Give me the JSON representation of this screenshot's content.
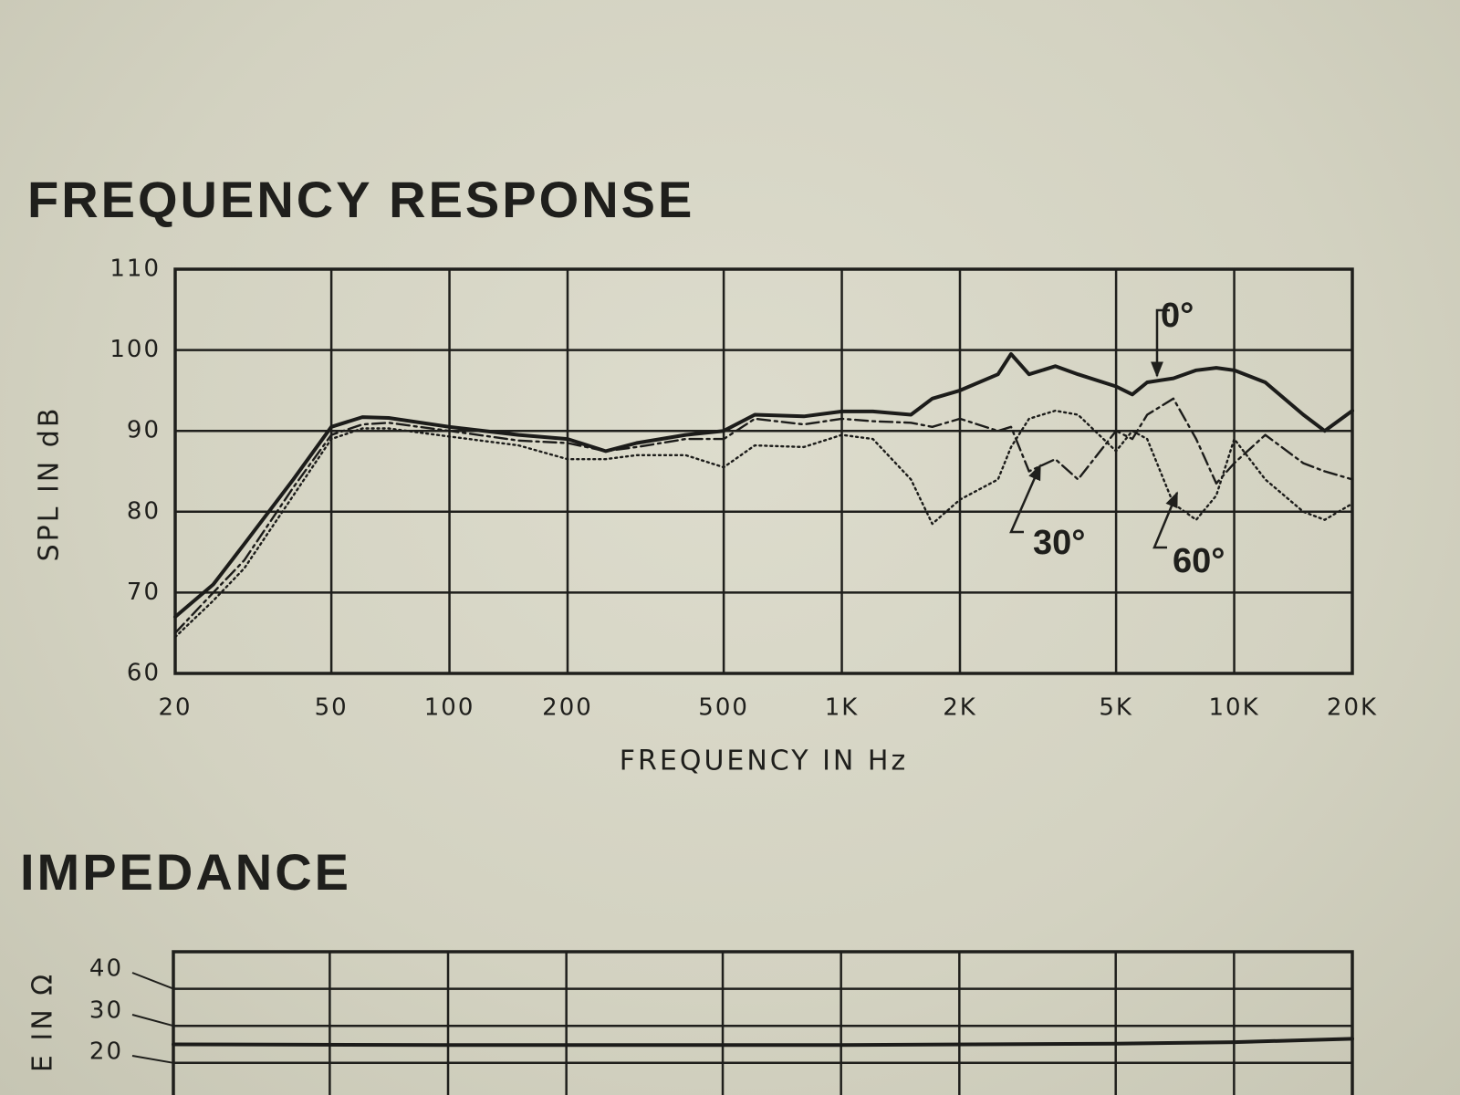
{
  "chart_data": [
    {
      "type": "line",
      "title": "FREQUENCY RESPONSE",
      "xlabel": "FREQUENCY IN Hz",
      "ylabel": "SPL IN dB",
      "log_x": true,
      "grid": true,
      "x": [
        20,
        25,
        30,
        40,
        50,
        60,
        70,
        100,
        150,
        200,
        250,
        300,
        400,
        500,
        600,
        800,
        1000,
        1200,
        1500,
        1700,
        2000,
        2500,
        2700,
        3000,
        3500,
        4000,
        5000,
        5500,
        6000,
        7000,
        8000,
        9000,
        10000,
        12000,
        15000,
        17000,
        20000
      ],
      "series": [
        {
          "name": "0°",
          "color": "#1c1c1a",
          "style": "solid",
          "values": [
            67,
            71,
            76,
            84,
            90.5,
            91.7,
            91.6,
            90.5,
            89.5,
            89,
            87.5,
            88.5,
            89.5,
            90,
            92,
            91.8,
            92.4,
            92.4,
            92,
            94,
            95,
            97,
            99.5,
            97,
            98,
            97,
            95.5,
            94.5,
            96,
            96.5,
            97.5,
            97.8,
            97.5,
            96,
            92,
            90,
            92.5
          ]
        },
        {
          "name": "30°",
          "color": "#1c1c1a",
          "style": "dashdot",
          "values": [
            65,
            70,
            74,
            83,
            89.5,
            90.8,
            91,
            90,
            88.8,
            88.5,
            87.5,
            88,
            89,
            89,
            91.5,
            90.8,
            91.5,
            91.2,
            91,
            90.5,
            91.5,
            90,
            90.5,
            85,
            86.5,
            84,
            90,
            89,
            92,
            94,
            89,
            83.5,
            86,
            89.5,
            86,
            85,
            84
          ]
        },
        {
          "name": "60°",
          "color": "#1c1c1a",
          "style": "dotted",
          "values": [
            64.5,
            69,
            73,
            82,
            89,
            90.3,
            90.3,
            89.3,
            88.2,
            86.5,
            86.5,
            87,
            87,
            85.5,
            88.2,
            88,
            89.5,
            89,
            84,
            78.5,
            81.5,
            84,
            88,
            91.5,
            92.5,
            92,
            87.5,
            90,
            89,
            81,
            79,
            82,
            89,
            84,
            80,
            79,
            81
          ]
        }
      ],
      "xlim": [
        20,
        20000
      ],
      "xticks": [
        20,
        50,
        100,
        200,
        500,
        {
          "value": 1000,
          "label": "1K"
        },
        {
          "value": 2000,
          "label": "2K"
        },
        {
          "value": 5000,
          "label": "5K"
        },
        {
          "value": 10000,
          "label": "10K"
        },
        {
          "value": 20000,
          "label": "20K"
        }
      ],
      "ylim": [
        60,
        110
      ],
      "yticks": [
        60,
        70,
        80,
        90,
        100,
        110
      ]
    },
    {
      "type": "line",
      "title": "IMPEDANCE",
      "ylabel": "E IN Ω",
      "log_x": true,
      "grid": true,
      "x": [
        20,
        100,
        1000,
        5000,
        10000,
        20000
      ],
      "series": [
        {
          "color": "#1c1c1a",
          "style": "solid",
          "values": [
            25,
            24.8,
            24.8,
            25.2,
            25.6,
            26.5
          ]
        }
      ],
      "xlim": [
        20,
        20000
      ],
      "ylim": [
        0,
        50
      ],
      "yticks": [
        20,
        30,
        40
      ]
    }
  ]
}
